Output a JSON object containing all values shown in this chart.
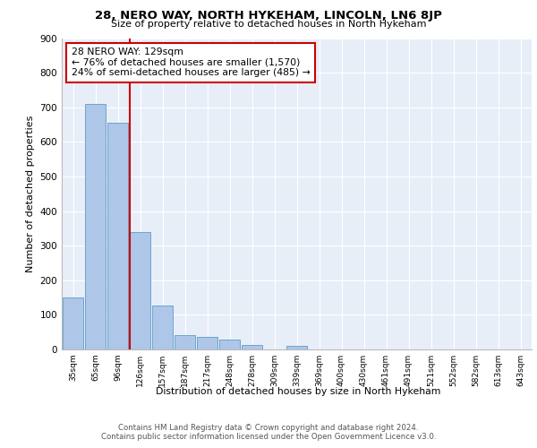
{
  "title": "28, NERO WAY, NORTH HYKEHAM, LINCOLN, LN6 8JP",
  "subtitle": "Size of property relative to detached houses in North Hykeham",
  "xlabel": "Distribution of detached houses by size in North Hykeham",
  "ylabel": "Number of detached properties",
  "categories": [
    "35sqm",
    "65sqm",
    "96sqm",
    "126sqm",
    "157sqm",
    "187sqm",
    "217sqm",
    "248sqm",
    "278sqm",
    "309sqm",
    "339sqm",
    "369sqm",
    "400sqm",
    "430sqm",
    "461sqm",
    "491sqm",
    "521sqm",
    "552sqm",
    "582sqm",
    "613sqm",
    "643sqm"
  ],
  "values": [
    150,
    710,
    655,
    340,
    128,
    42,
    35,
    28,
    12,
    0,
    10,
    0,
    0,
    0,
    0,
    0,
    0,
    0,
    0,
    0,
    0
  ],
  "bar_color": "#aec6e8",
  "bar_edge_color": "#5a9ec9",
  "property_line_index": 3,
  "property_line_color": "#cc0000",
  "annotation_text": "28 NERO WAY: 129sqm\n← 76% of detached houses are smaller (1,570)\n24% of semi-detached houses are larger (485) →",
  "annotation_box_color": "#ffffff",
  "annotation_box_edge_color": "#cc0000",
  "ylim": [
    0,
    900
  ],
  "yticks": [
    0,
    100,
    200,
    300,
    400,
    500,
    600,
    700,
    800,
    900
  ],
  "background_color": "#e8eef8",
  "footer_line1": "Contains HM Land Registry data © Crown copyright and database right 2024.",
  "footer_line2": "Contains public sector information licensed under the Open Government Licence v3.0."
}
